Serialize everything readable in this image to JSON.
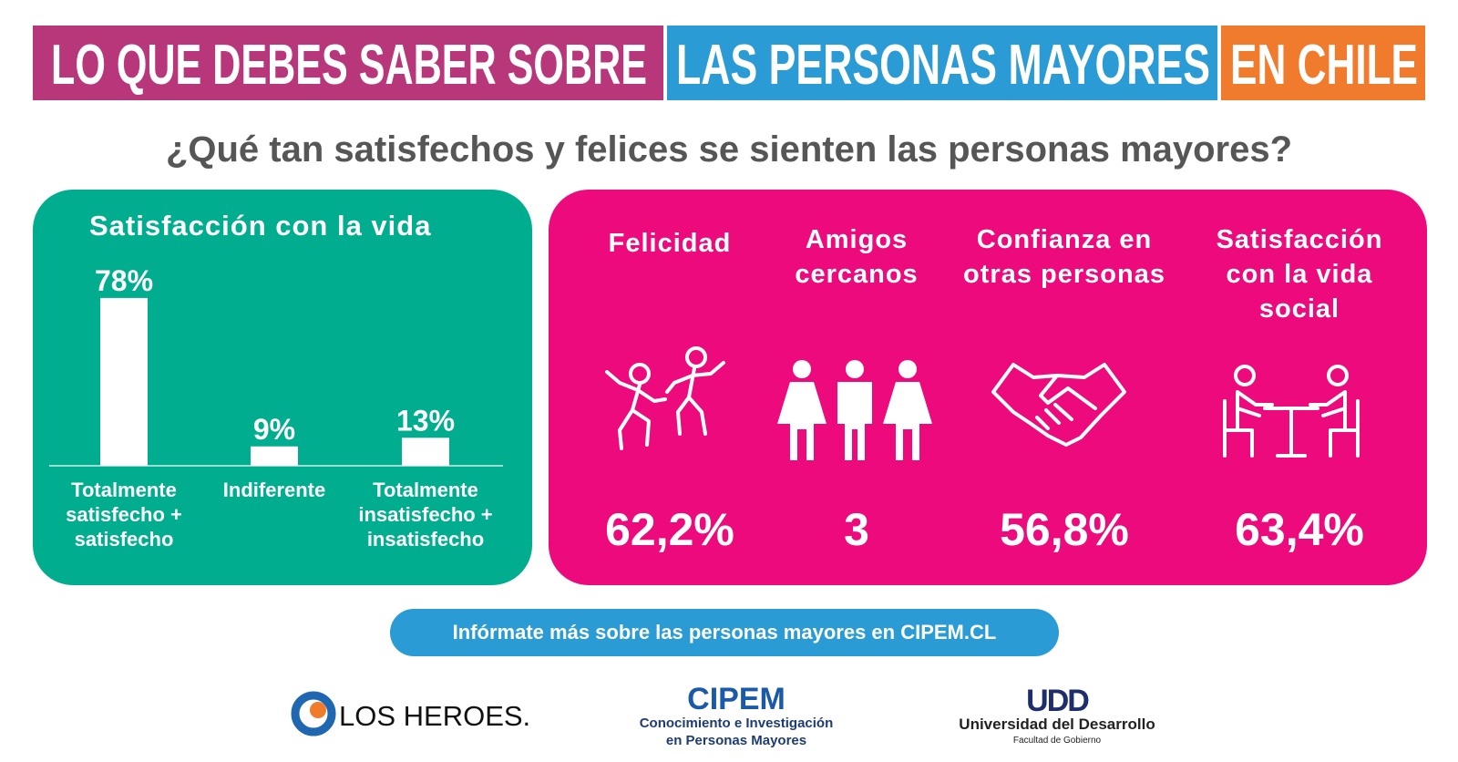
{
  "header": [
    "LO QUE DEBES SABER SOBRE",
    "LAS PERSONAS MAYORES",
    "EN CHILE"
  ],
  "question": "¿Qué tan satisfechos y felices se sienten las personas mayores?",
  "chart_data": {
    "type": "bar",
    "title": "Satisfacción con la vida",
    "categories": [
      "Totalmente satisfecho + satisfecho",
      "Indiferente",
      "Totalmente insatisfecho + insatisfecho"
    ],
    "values": [
      78,
      9,
      13
    ],
    "value_labels": [
      "78%",
      "9%",
      "13%"
    ],
    "color": "#ffffff"
  },
  "indicators": [
    {
      "label": "Felicidad",
      "value": "62,2%"
    },
    {
      "label": "Amigos cercanos",
      "value": "3"
    },
    {
      "label": "Confianza en otras personas",
      "value": "56,8%"
    },
    {
      "label": "Satisfacción con la vida social",
      "value": "63,4%"
    }
  ],
  "footer_link": "Infórmate más sobre las personas mayores en CIPEM.CL",
  "logos": {
    "los_heroes": "LOS HEROES.",
    "cipem": {
      "name": "CIPEM",
      "subtitle_1": "Conocimiento e Investigación",
      "subtitle_2": "en Personas Mayores"
    },
    "udd": {
      "name": "UDD",
      "subtitle": "Universidad del Desarrollo",
      "faculty": "Facultad de Gobierno"
    }
  }
}
